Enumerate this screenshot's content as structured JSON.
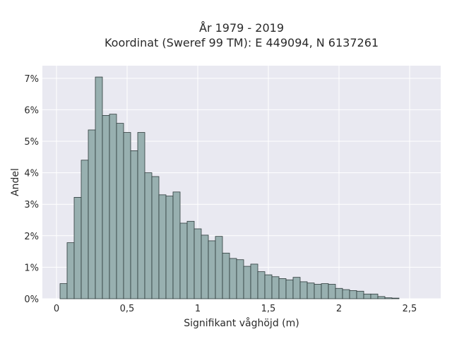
{
  "chart_data": {
    "type": "bar",
    "title_line1": "År 1979 - 2019",
    "title_line2": "Koordinat (Sweref 99 TM): E 449094, N 6137261",
    "xlabel": "Signifikant våghöjd (m)",
    "ylabel": "Andel",
    "xlim": [
      -0.1,
      2.72
    ],
    "ylim": [
      0,
      7.4
    ],
    "x_ticks": [
      0,
      0.5,
      1,
      1.5,
      2,
      2.5
    ],
    "x_tick_labels": [
      "0",
      "0,5",
      "1",
      "1,5",
      "2",
      "2,5"
    ],
    "y_ticks": [
      0,
      1,
      2,
      3,
      4,
      5,
      6,
      7
    ],
    "y_tick_labels": [
      "0%",
      "1%",
      "2%",
      "3%",
      "4%",
      "5%",
      "6%",
      "7%"
    ],
    "bin_width": 0.05,
    "bin_start": 0.025,
    "values": [
      0.48,
      1.78,
      3.22,
      4.4,
      5.36,
      7.04,
      5.82,
      5.86,
      5.57,
      5.28,
      4.7,
      5.28,
      4.0,
      3.88,
      3.3,
      3.26,
      3.39,
      2.4,
      2.46,
      2.22,
      2.02,
      1.84,
      1.98,
      1.45,
      1.28,
      1.24,
      1.03,
      1.1,
      0.86,
      0.76,
      0.7,
      0.64,
      0.6,
      0.68,
      0.54,
      0.5,
      0.46,
      0.48,
      0.46,
      0.33,
      0.29,
      0.26,
      0.24,
      0.15,
      0.15,
      0.07,
      0.03,
      0.02
    ],
    "grid": true,
    "legend": "none",
    "colors": {
      "bar_fill": "#98b0b0",
      "bar_stroke": "#2e3b3b",
      "plot_bg": "#e9e9f1",
      "grid": "#ffffff",
      "text": "#2a2a2a"
    }
  }
}
